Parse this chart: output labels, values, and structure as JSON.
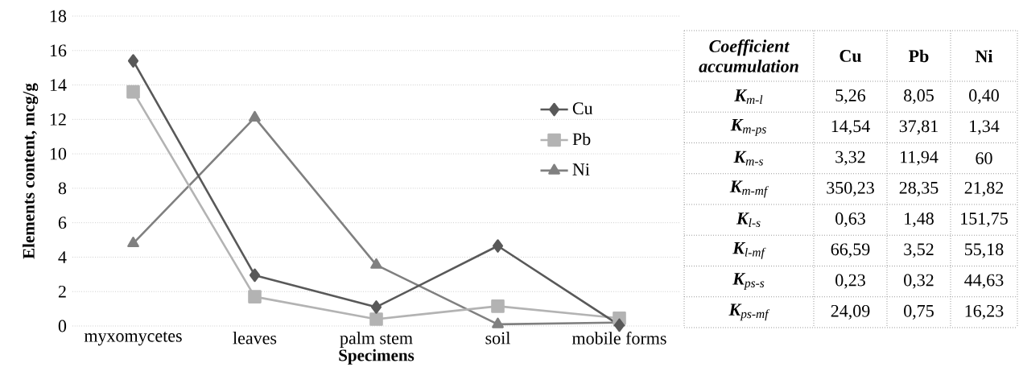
{
  "chart_data": [
    {
      "type": "line",
      "xlabel": "Specimens",
      "ylabel": "Elements content, mcg/g",
      "categories": [
        "myxomycetes",
        "leaves",
        "palm stem",
        "soil",
        "mobile forms"
      ],
      "series": [
        {
          "name": "Cu",
          "color": "#595959",
          "marker": "diamond",
          "values": [
            15.4,
            2.95,
            1.1,
            4.65,
            0.05
          ]
        },
        {
          "name": "Pb",
          "color": "#b3b3b3",
          "marker": "square",
          "values": [
            13.6,
            1.7,
            0.4,
            1.15,
            0.45
          ]
        },
        {
          "name": "Ni",
          "color": "#808080",
          "marker": "triangle",
          "values": [
            4.8,
            12.1,
            3.55,
            0.1,
            0.2
          ]
        }
      ],
      "ylim": [
        0,
        18
      ],
      "yticks": [
        0,
        2,
        4,
        6,
        8,
        10,
        12,
        14,
        16,
        18
      ],
      "grid": "y",
      "legend": "right",
      "line_style": "solid"
    },
    {
      "type": "other",
      "annotations": [
        "Coefficient accumulation",
        "Cu",
        "Pb",
        "Ni",
        "**K**$_{m-l}$",
        "5,26",
        "8,05",
        "0,40",
        "**K**$_{m-ps}$",
        "14,54",
        "37,81",
        "1,34",
        "**K**$_{m-s}$",
        "3,32",
        "11,94",
        "60",
        "**K**$_{m-mf}$",
        "350,23",
        "28,35",
        "21,82",
        "**K**$_{l-s}$",
        "0,63",
        "1,48",
        "151,75",
        "**K**$_{l-mf}$",
        "66,59",
        "3,52",
        "55,18",
        "**K**$_{ps-s}$",
        "0,23",
        "0,32",
        "44,63",
        "**K**$_{ps-mf}$",
        "24,09",
        "0,75",
        "16,23"
      ]
    }
  ]
}
